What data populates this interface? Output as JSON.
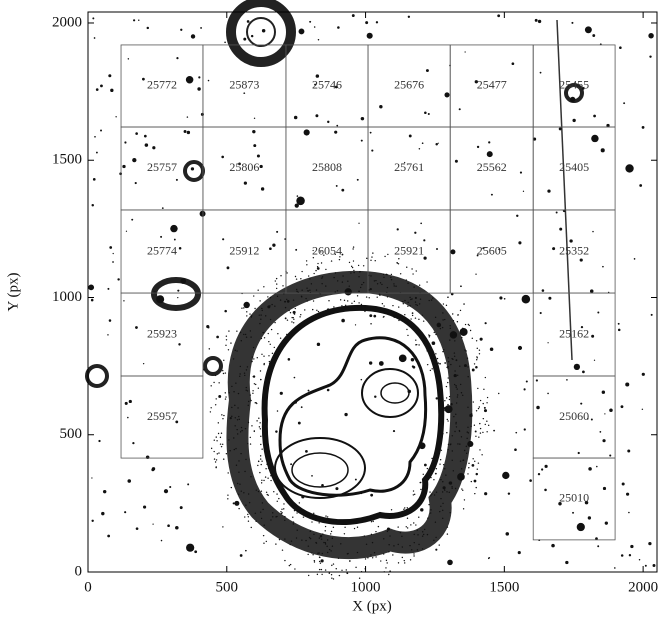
{
  "chart_data": {
    "type": "image-grid",
    "x_label": "X (px)",
    "y_label": "Y (px)",
    "xlim": [
      0,
      2050
    ],
    "ylim": [
      0,
      2040
    ],
    "xticks": [
      0,
      500,
      1000,
      1500,
      2000
    ],
    "yticks": [
      0,
      500,
      1000,
      1500,
      2000
    ],
    "cells": [
      {
        "label": "25772",
        "x": [
          119,
          414
        ],
        "y": [
          1621,
          1920
        ]
      },
      {
        "label": "25873",
        "x": [
          414,
          713
        ],
        "y": [
          1621,
          1920
        ]
      },
      {
        "label": "25746",
        "x": [
          713,
          1009
        ],
        "y": [
          1621,
          1920
        ]
      },
      {
        "label": "25676",
        "x": [
          1009,
          1305
        ],
        "y": [
          1621,
          1920
        ]
      },
      {
        "label": "25477",
        "x": [
          1305,
          1604
        ],
        "y": [
          1621,
          1920
        ]
      },
      {
        "label": "25455",
        "x": [
          1604,
          1899
        ],
        "y": [
          1621,
          1920
        ]
      },
      {
        "label": "25757",
        "x": [
          119,
          414
        ],
        "y": [
          1319,
          1621
        ]
      },
      {
        "label": "25806",
        "x": [
          414,
          713
        ],
        "y": [
          1319,
          1621
        ]
      },
      {
        "label": "25808",
        "x": [
          713,
          1009
        ],
        "y": [
          1319,
          1621
        ]
      },
      {
        "label": "25761",
        "x": [
          1009,
          1305
        ],
        "y": [
          1319,
          1621
        ]
      },
      {
        "label": "25562",
        "x": [
          1305,
          1604
        ],
        "y": [
          1319,
          1621
        ]
      },
      {
        "label": "25405",
        "x": [
          1604,
          1899
        ],
        "y": [
          1319,
          1621
        ]
      },
      {
        "label": "25774",
        "x": [
          119,
          414
        ],
        "y": [
          1016,
          1319
        ]
      },
      {
        "label": "25912",
        "x": [
          414,
          713
        ],
        "y": [
          1016,
          1319
        ]
      },
      {
        "label": "26054",
        "x": [
          713,
          1009
        ],
        "y": [
          1016,
          1319
        ]
      },
      {
        "label": "25921",
        "x": [
          1009,
          1305
        ],
        "y": [
          1016,
          1319
        ]
      },
      {
        "label": "25605",
        "x": [
          1305,
          1604
        ],
        "y": [
          1016,
          1319
        ]
      },
      {
        "label": "25352",
        "x": [
          1604,
          1899
        ],
        "y": [
          1016,
          1319
        ]
      },
      {
        "label": "25923",
        "x": [
          119,
          414
        ],
        "y": [
          714,
          1016
        ]
      },
      {
        "label": "25162",
        "x": [
          1604,
          1899
        ],
        "y": [
          714,
          1016
        ]
      },
      {
        "label": "25957",
        "x": [
          119,
          414
        ],
        "y": [
          415,
          714
        ]
      },
      {
        "label": "25060",
        "x": [
          1604,
          1899
        ],
        "y": [
          415,
          714
        ]
      },
      {
        "label": "25010",
        "x": [
          1604,
          1899
        ],
        "y": [
          117,
          415
        ]
      }
    ]
  }
}
